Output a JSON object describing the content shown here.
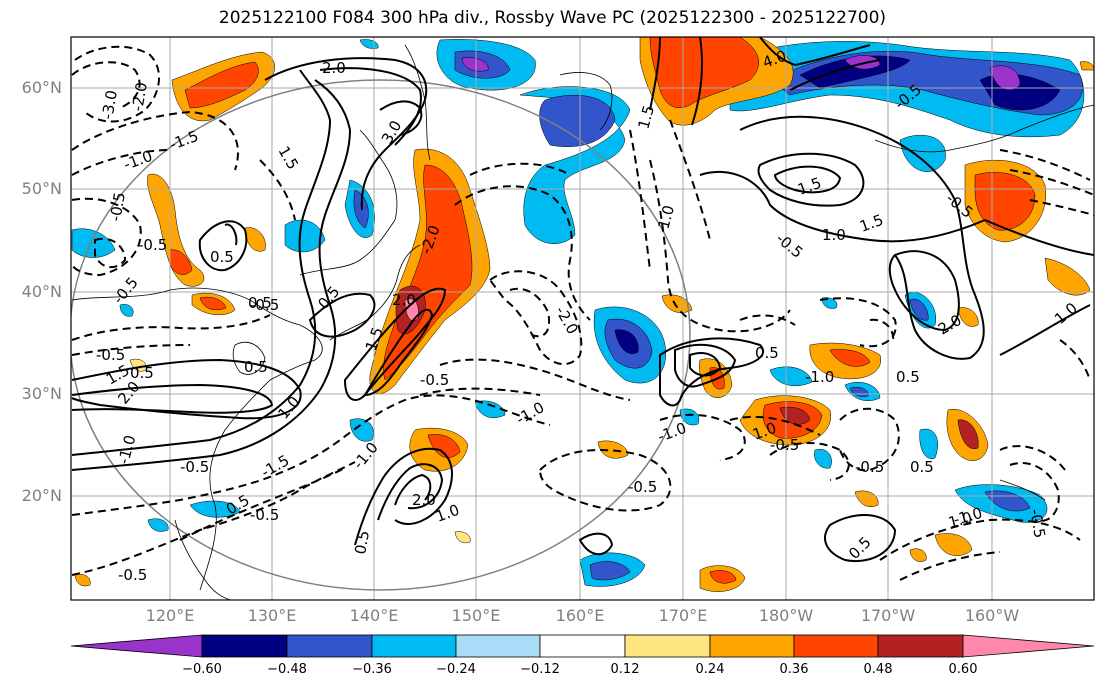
{
  "title": "2025122100 F084 300 hPa div., Rossby Wave PC (2025122300 - 2025122700)",
  "latitude_labels": [
    "60°N",
    "50°N",
    "40°N",
    "30°N",
    "20°N"
  ],
  "longitude_labels": [
    "120°E",
    "130°E",
    "140°E",
    "150°E",
    "160°E",
    "170°E",
    "180°W",
    "170°W",
    "160°W"
  ],
  "colorbar": {
    "ticks": [
      "−0.60",
      "−0.48",
      "−0.36",
      "−0.24",
      "−0.12",
      "0.12",
      "0.24",
      "0.36",
      "0.48",
      "0.60"
    ],
    "colors": [
      "#9933cc",
      "#000080",
      "#3355cc",
      "#00bbf2",
      "#aadcf8",
      "#ffffff",
      "#ffe680",
      "#ffa500",
      "#ff4500",
      "#b22222",
      "#ff88aa"
    ]
  },
  "contour_labels": {
    "positive": [
      "2.0",
      "3.0",
      "1.5",
      "1.5",
      "1.0",
      "1.5",
      "1.0",
      "0.5",
      "2.0",
      "1.5",
      "0.5",
      "1.0",
      "0.5",
      "0.5",
      "1.0",
      "2.0",
      "0.5",
      "1.0",
      "1.0",
      "0.5",
      "1.0",
      "0.5",
      "2.0",
      "1.5",
      "0.5",
      "4.0",
      "0.5",
      "0.5",
      "2.0",
      "1.5",
      "0.5"
    ],
    "negative": [
      "-3.0",
      "-2.0",
      "-1.5",
      "-1.0",
      "-0.5",
      "-0.5",
      "-0.5",
      "-0.5",
      "-0.5",
      "-0.5",
      "-1.0",
      "-0.5",
      "-1.5",
      "-1.0",
      "-2.0",
      "-1.0",
      "-0.5",
      "-0.5",
      "-1.0",
      "-0.5",
      "-0.5",
      "-2.0",
      "-0.5",
      "-0.5",
      "-1.0",
      "-0.5",
      "-1.0",
      "-0.5",
      "-0.5"
    ]
  }
}
